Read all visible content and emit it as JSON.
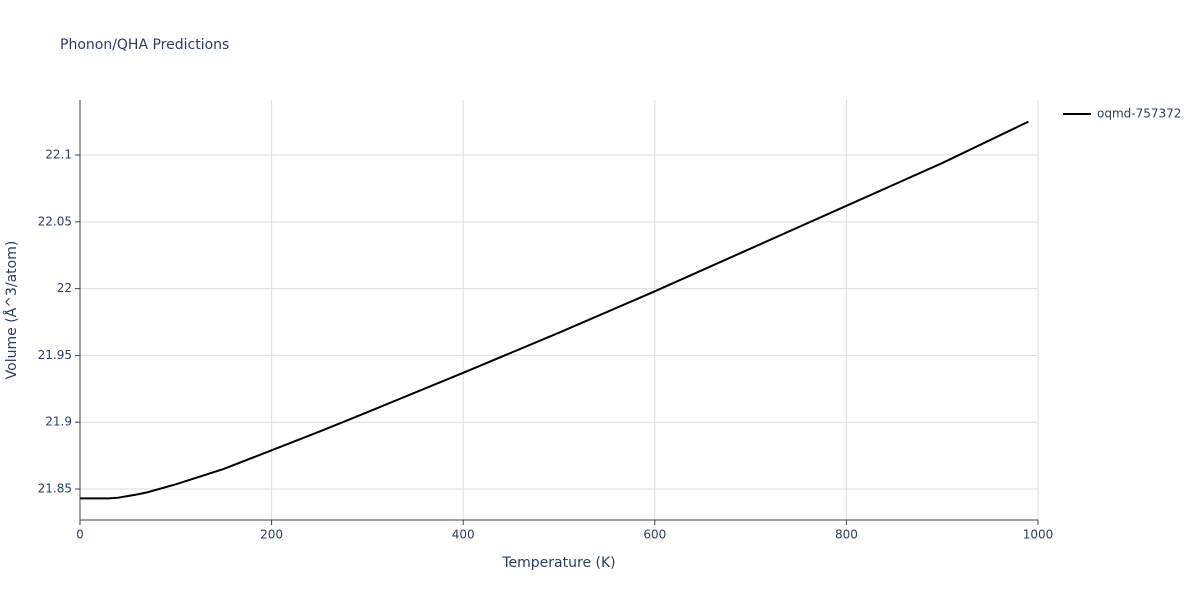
{
  "chart_data": {
    "type": "line",
    "title": "Phonon/QHA Predictions",
    "x_label": "Temperature (K)",
    "y_label": "Volume (Å^3/atom)",
    "x": [
      0,
      30,
      40,
      60,
      70,
      100,
      150,
      200,
      250,
      300,
      400,
      500,
      600,
      700,
      800,
      900,
      990
    ],
    "series": [
      {
        "name": "oqmd-757372",
        "color": "#000000",
        "values": [
          21.843,
          21.843,
          21.8435,
          21.846,
          21.8475,
          21.8535,
          21.865,
          21.879,
          21.893,
          21.9075,
          21.937,
          21.967,
          21.998,
          22.03,
          22.062,
          22.094,
          22.125
        ]
      }
    ],
    "xlim": [
      0,
      1000
    ],
    "xticks": [
      0,
      200,
      400,
      600,
      800,
      1000
    ],
    "ylim": [
      21.8268,
      22.1412
    ],
    "yticks": [
      21.85,
      21.9,
      21.95,
      22,
      22.05,
      22.1
    ],
    "grid": true,
    "legend": "right"
  }
}
